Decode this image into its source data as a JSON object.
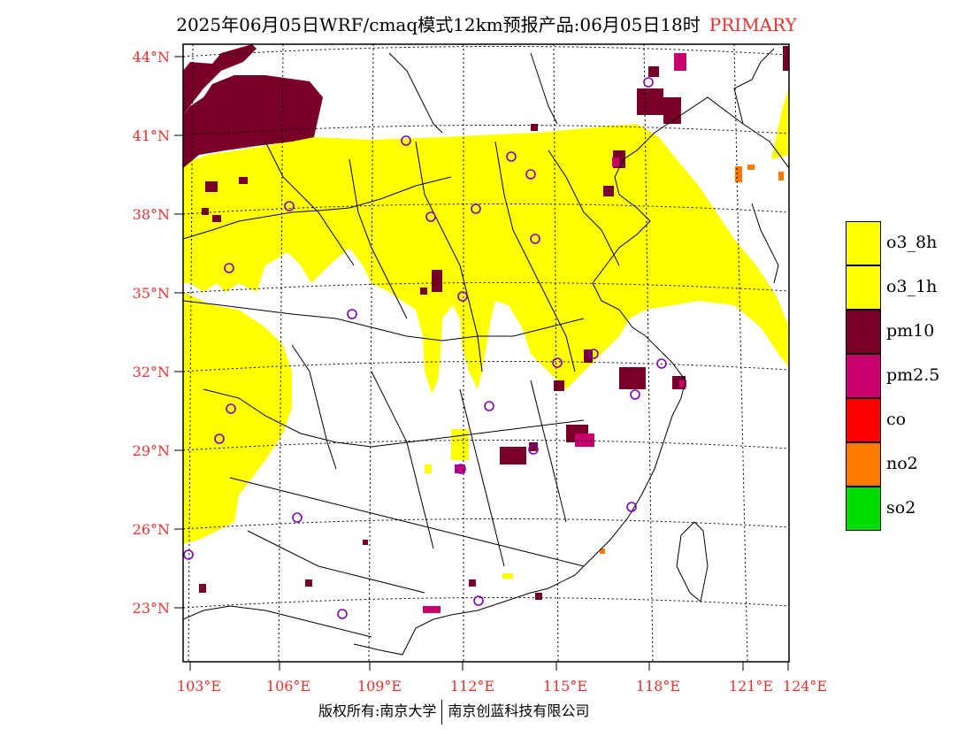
{
  "title": {
    "text": "2025年06月05日WRF/cmaq模式12km预报产品:06月05日18时",
    "tag": "PRIMARY"
  },
  "colors": {
    "tag": "#e83030",
    "axis_labels": "#e83030",
    "o3_8h": "#ffff00",
    "o3_1h": "#ffff00",
    "pm10": "#780028",
    "pm2_5": "#c8006e",
    "co": "#ff0000",
    "no2": "#ff7800",
    "so2": "#00dc00",
    "station_marker": "#8000c0"
  },
  "axes": {
    "lat_labels": [
      "44°N",
      "41°N",
      "38°N",
      "35°N",
      "32°N",
      "29°N",
      "26°N",
      "23°N"
    ],
    "lon_labels": [
      "103°E",
      "106°E",
      "109°E",
      "112°E",
      "115°E",
      "118°E",
      "121°E",
      "124°E"
    ]
  },
  "legend": [
    {
      "label": "o3_8h",
      "color": "#ffff00"
    },
    {
      "label": "o3_1h",
      "color": "#ffff00"
    },
    {
      "label": "pm10",
      "color": "#780028"
    },
    {
      "label": "pm2.5",
      "color": "#c8006e"
    },
    {
      "label": "co",
      "color": "#ff0000"
    },
    {
      "label": "no2",
      "color": "#ff7800"
    },
    {
      "label": "so2",
      "color": "#00dc00"
    }
  ],
  "footer": {
    "left": "版权所有:南京大学",
    "right": "南京创蓝科技有限公司"
  }
}
